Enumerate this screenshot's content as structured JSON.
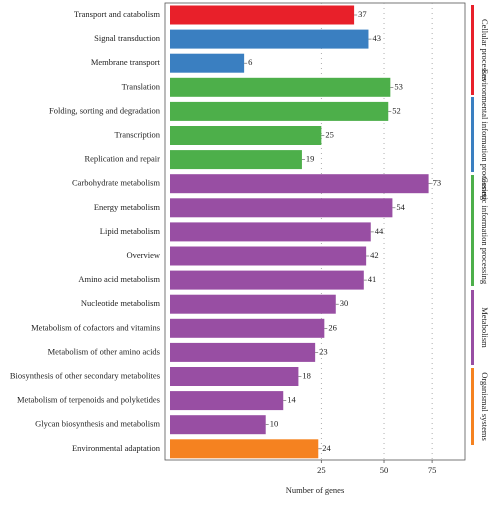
{
  "chart_data": {
    "type": "bar",
    "orientation": "horizontal",
    "xscale": "sqrt",
    "xlabel": "Number of genes",
    "xlim": [
      0,
      95
    ],
    "xticks": [
      25,
      50,
      75
    ],
    "grid": true,
    "series": [
      {
        "name": "Cellular processes",
        "color": "#e8202a",
        "categories": [
          "Transport and catabolism"
        ],
        "values": [
          37
        ]
      },
      {
        "name": "Environmental information processing",
        "color": "#3a7fc1",
        "categories": [
          "Signal transduction",
          "Membrane transport"
        ],
        "values": [
          43,
          6
        ]
      },
      {
        "name": "Genetic information processing",
        "color": "#4daf4a",
        "categories": [
          "Translation",
          "Folding, sorting and degradation",
          "Transcription",
          "Replication and repair"
        ],
        "values": [
          53,
          52,
          25,
          19
        ]
      },
      {
        "name": "Metabolism",
        "color": "#984ea3",
        "categories": [
          "Carbohydrate metabolism",
          "Energy metabolism",
          "Lipid metabolism",
          "Overview",
          "Amino acid metabolism",
          "Nucleotide metabolism",
          "Metabolism of cofactors and vitamins",
          "Metabolism of other amino acids",
          "Biosynthesis of other secondary metabolites",
          "Metabolism of terpenoids and polyketides",
          "Glycan biosynthesis and metabolism"
        ],
        "values": [
          73,
          54,
          44,
          42,
          41,
          30,
          26,
          23,
          18,
          14,
          10
        ]
      },
      {
        "name": "Organismal systems",
        "color": "#f58220",
        "categories": [
          "Environmental adaptation"
        ],
        "values": [
          24
        ]
      }
    ]
  }
}
